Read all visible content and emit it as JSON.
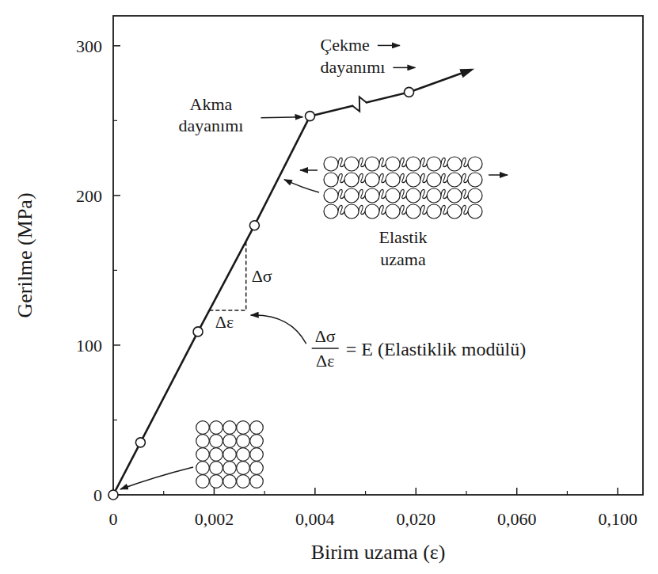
{
  "chart_data": {
    "type": "line",
    "x_label": "Birim uzama (ε)",
    "y_label": "Gerilme (MPa)",
    "x": [
      0,
      0.00054,
      0.00168,
      0.0028,
      0.0039,
      0.0189,
      0.042
    ],
    "values": [
      0,
      35,
      109,
      180,
      253,
      269,
      284
    ],
    "color": "#1a1a1a",
    "marker": "circle",
    "line_style": "solid",
    "xlim": [
      0,
      0.11
    ],
    "xticks": [
      0,
      {
        "value": 0.002,
        "label": "0,002"
      },
      {
        "value": 0.004,
        "label": "0,004"
      },
      {
        "value": 0.02,
        "label": "0,020"
      },
      {
        "value": 0.06,
        "label": "0,060"
      },
      {
        "value": 0.1,
        "label": "0,100"
      }
    ],
    "ylim": [
      0,
      320
    ],
    "yticks": [
      0,
      100,
      200,
      300
    ],
    "grid": false,
    "annotations": {
      "yield_strength": "Akma dayanımı",
      "tensile_strength": "Çekme dayanımı",
      "elastic_deformation": "Elastik uzama",
      "delta_stress": "Δσ",
      "delta_strain": "Δε",
      "modulus": "= E (Elastiklik modülü)"
    }
  }
}
